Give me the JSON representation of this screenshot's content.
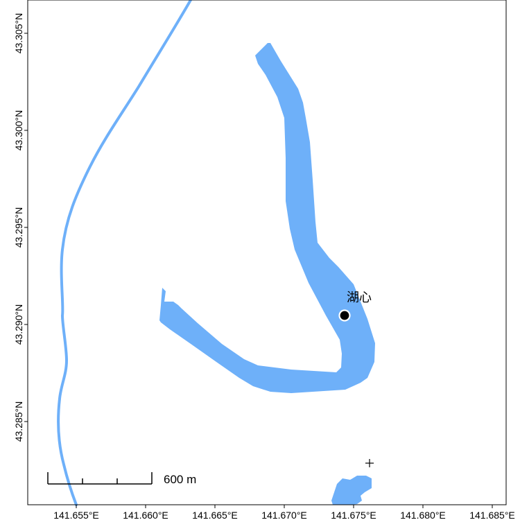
{
  "colors": {
    "water": "#6eb0f9",
    "frame": "#000000",
    "background": "#ffffff",
    "marker_fill": "#000000",
    "marker_stroke": "#ffffff"
  },
  "x_axis": {
    "ticks": [
      {
        "value": 141.655,
        "label": "141.655°E"
      },
      {
        "value": 141.66,
        "label": "141.660°E"
      },
      {
        "value": 141.665,
        "label": "141.665°E"
      },
      {
        "value": 141.67,
        "label": "141.670°E"
      },
      {
        "value": 141.675,
        "label": "141.675°E"
      },
      {
        "value": 141.68,
        "label": "141.680°E"
      },
      {
        "value": 141.685,
        "label": "141.685°E"
      }
    ]
  },
  "y_axis": {
    "ticks": [
      {
        "value": 43.285,
        "label": "43.285°N"
      },
      {
        "value": 43.29,
        "label": "43.290°N"
      },
      {
        "value": 43.295,
        "label": "43.295°N"
      },
      {
        "value": 43.3,
        "label": "43.300°N"
      },
      {
        "value": 43.305,
        "label": "43.305°N"
      }
    ]
  },
  "point_of_interest": {
    "label": "湖心",
    "lon": 141.6751,
    "lat": 43.2906
  },
  "scale_bar": {
    "label": "600 m"
  },
  "features": {
    "river_line": "river",
    "lake": "oxbow lake",
    "pond": "small pond"
  }
}
